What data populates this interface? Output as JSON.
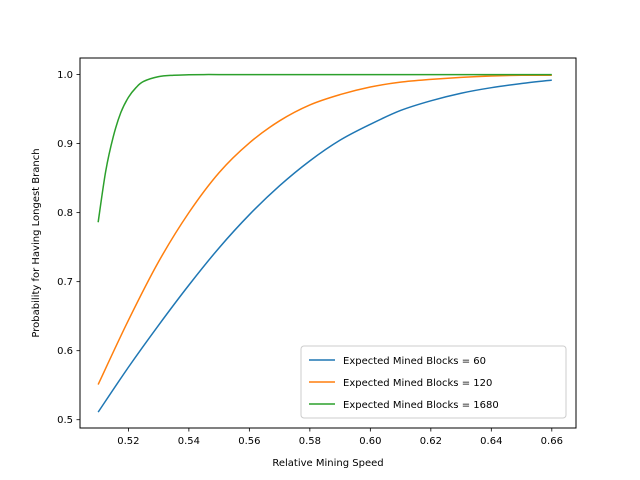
{
  "chart_data": {
    "type": "line",
    "title": "",
    "xlabel": "Relative Mining Speed",
    "ylabel": "Probability for Having Longest Branch",
    "xlim": [
      0.504,
      0.668
    ],
    "ylim": [
      0.488,
      1.024
    ],
    "xticks": [
      0.52,
      0.54,
      0.56,
      0.58,
      0.6,
      0.62,
      0.64,
      0.66
    ],
    "xtick_labels": [
      "0.52",
      "0.54",
      "0.56",
      "0.58",
      "0.60",
      "0.62",
      "0.64",
      "0.66"
    ],
    "yticks": [
      0.5,
      0.6,
      0.7,
      0.8,
      0.9,
      1.0
    ],
    "ytick_labels": [
      "0.5",
      "0.6",
      "0.7",
      "0.8",
      "0.9",
      "1.0"
    ],
    "grid": false,
    "legend_position": "lower-right",
    "series": [
      {
        "name": "Expected Mined Blocks = 60",
        "color": "#1f77b4",
        "x": [
          0.51,
          0.52,
          0.53,
          0.54,
          0.55,
          0.56,
          0.57,
          0.58,
          0.59,
          0.6,
          0.61,
          0.62,
          0.63,
          0.64,
          0.65,
          0.66
        ],
        "y": [
          0.511,
          0.576,
          0.637,
          0.695,
          0.749,
          0.797,
          0.839,
          0.875,
          0.905,
          0.928,
          0.948,
          0.962,
          0.973,
          0.981,
          0.987,
          0.992
        ]
      },
      {
        "name": "Expected Mined Blocks = 120",
        "color": "#ff7f0e",
        "x": [
          0.51,
          0.52,
          0.53,
          0.54,
          0.55,
          0.56,
          0.57,
          0.58,
          0.59,
          0.6,
          0.61,
          0.62,
          0.63,
          0.64,
          0.65,
          0.66
        ],
        "y": [
          0.551,
          0.644,
          0.729,
          0.8,
          0.858,
          0.901,
          0.933,
          0.956,
          0.971,
          0.982,
          0.989,
          0.993,
          0.996,
          0.998,
          0.999,
          0.999
        ]
      },
      {
        "name": "Expected Mined Blocks = 1680",
        "color": "#2ca02c",
        "x": [
          0.51,
          0.5125,
          0.515,
          0.5175,
          0.52,
          0.5225,
          0.525,
          0.53,
          0.535,
          0.54,
          0.545,
          0.55,
          0.56,
          0.58,
          0.6,
          0.62,
          0.64,
          0.66
        ],
        "y": [
          0.786,
          0.86,
          0.91,
          0.945,
          0.967,
          0.981,
          0.99,
          0.997,
          0.999,
          0.9997,
          1.0,
          1.0,
          1.0,
          1.0,
          1.0,
          1.0,
          1.0,
          1.0
        ]
      }
    ]
  }
}
